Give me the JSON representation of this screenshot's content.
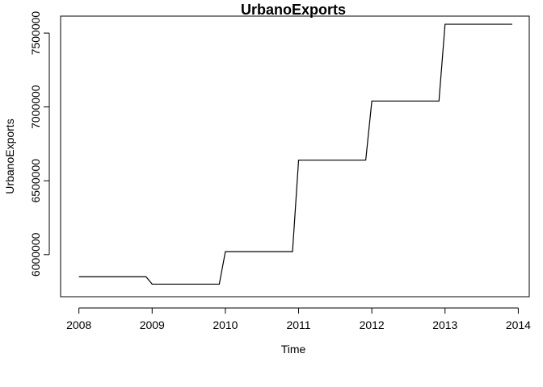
{
  "chart_data": {
    "type": "line",
    "title": "UrbanoExports",
    "xlabel": "Time",
    "ylabel": "UrbanoExports",
    "xlim": [
      2007.75,
      2014.15
    ],
    "ylim": [
      5715000,
      7615000
    ],
    "x_ticks": [
      2008,
      2009,
      2010,
      2011,
      2012,
      2013,
      2014
    ],
    "y_ticks": [
      6000000,
      6500000,
      7000000,
      7500000
    ],
    "grid": false,
    "legend": "none",
    "series": [
      {
        "x": [
          2008.0,
          2008.917,
          2009.0,
          2009.917,
          2010.0,
          2010.917,
          2011.0,
          2011.917,
          2012.0,
          2012.917,
          2013.0,
          2013.917
        ],
        "values": [
          5850000,
          5850000,
          5800000,
          5800000,
          6020000,
          6020000,
          6640000,
          6640000,
          7040000,
          7040000,
          7560000,
          7560000
        ]
      }
    ]
  }
}
